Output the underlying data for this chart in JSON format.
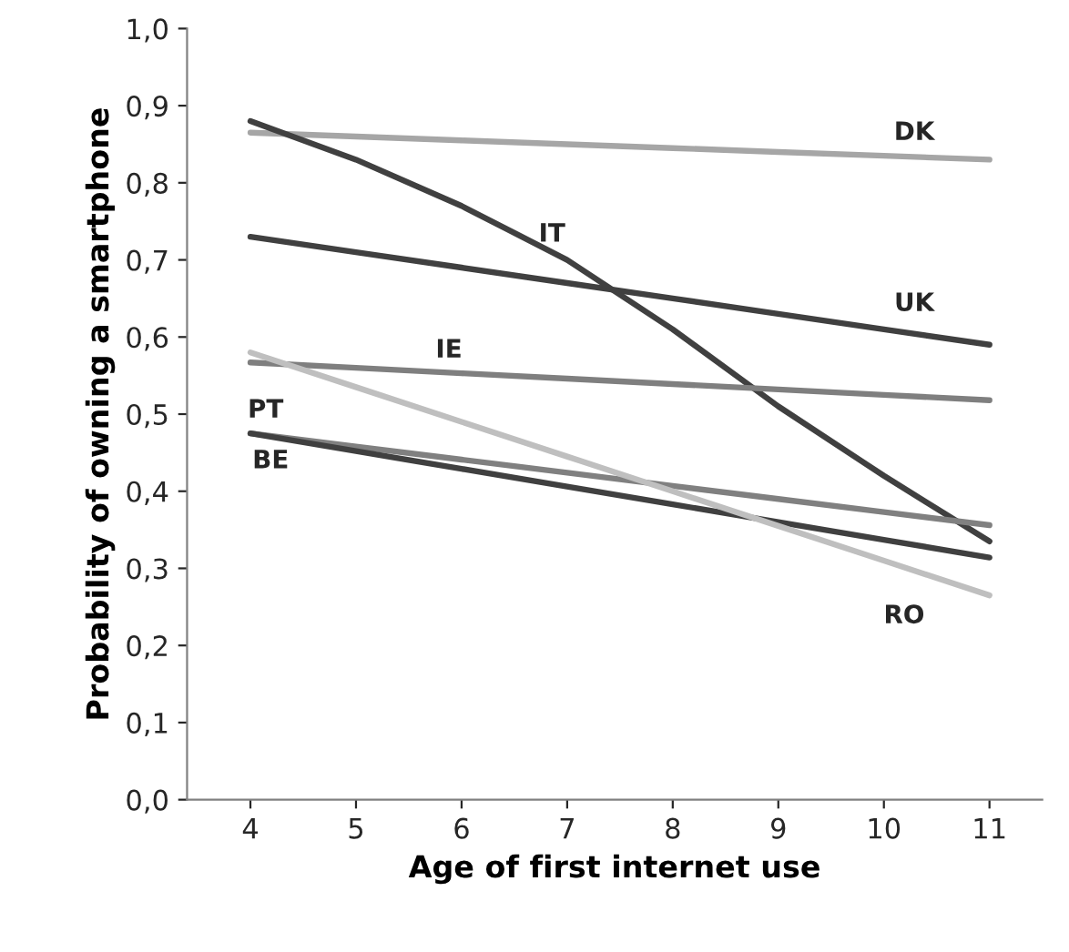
{
  "chart_data": {
    "type": "line",
    "xlabel": "Age of first internet use",
    "ylabel": "Probability of owning a smartphone",
    "x": [
      4,
      5,
      6,
      7,
      8,
      9,
      10,
      11
    ],
    "series": [
      {
        "name": "DK",
        "color": "#a6a6a6",
        "values": [
          0.865,
          0.86,
          0.855,
          0.85,
          0.845,
          0.84,
          0.835,
          0.83
        ]
      },
      {
        "name": "UK",
        "color": "#404040",
        "values": [
          0.73,
          0.71,
          0.69,
          0.67,
          0.65,
          0.63,
          0.61,
          0.59
        ]
      },
      {
        "name": "IT",
        "color": "#404040",
        "values": [
          0.88,
          0.83,
          0.77,
          0.7,
          0.61,
          0.51,
          0.42,
          0.335
        ]
      },
      {
        "name": "IE",
        "color": "#7f7f7f",
        "values": [
          0.567,
          0.56,
          0.553,
          0.546,
          0.539,
          0.532,
          0.525,
          0.518
        ]
      },
      {
        "name": "PT",
        "color": "#808080",
        "values": [
          0.475,
          0.458,
          0.441,
          0.424,
          0.407,
          0.39,
          0.373,
          0.356
        ]
      },
      {
        "name": "BE",
        "color": "#404040",
        "values": [
          0.475,
          0.452,
          0.429,
          0.406,
          0.383,
          0.36,
          0.337,
          0.314
        ]
      },
      {
        "name": "RO",
        "color": "#bfbfbf",
        "values": [
          0.58,
          0.535,
          0.49,
          0.445,
          0.4,
          0.355,
          0.31,
          0.265
        ]
      }
    ],
    "xlim": [
      3.4,
      11.5
    ],
    "xticks": [
      4,
      5,
      6,
      7,
      8,
      9,
      10,
      11
    ],
    "ylim": [
      0,
      1
    ],
    "yticks": [
      {
        "value": 0,
        "label": "0,0"
      },
      {
        "value": 0.1,
        "label": "0,1"
      },
      {
        "value": 0.2,
        "label": "0,2"
      },
      {
        "value": 0.3,
        "label": "0,3"
      },
      {
        "value": 0.4,
        "label": "0,4"
      },
      {
        "value": 0.5,
        "label": "0,5"
      },
      {
        "value": 0.6,
        "label": "0,6"
      },
      {
        "value": 0.7,
        "label": "0,7"
      },
      {
        "value": 0.8,
        "label": "0,8"
      },
      {
        "value": 0.9,
        "label": "0,9"
      },
      {
        "value": 1,
        "label": "1,0"
      }
    ],
    "grid": false,
    "legend": false
  }
}
